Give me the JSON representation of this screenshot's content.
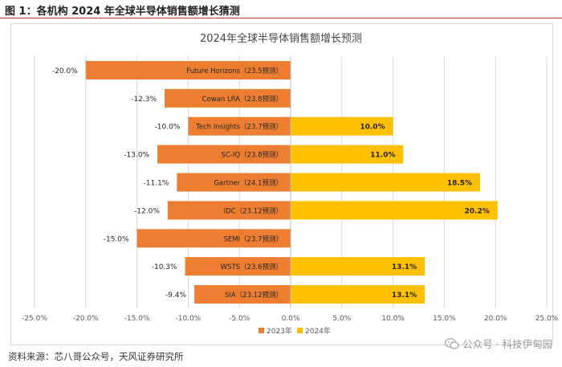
{
  "figure_title": "图 1：各机构 2024 年全球半导体销售额增长猜测",
  "source_note": "资料来源：芯八哥公众号，天风证券研究所",
  "watermark": "公众号 · 科技伊甸园",
  "chart_data": {
    "type": "bar",
    "orientation": "horizontal",
    "title": "2024年全球半导体销售额增长预测",
    "categories": [
      "Future Horizons（23.5预测）",
      "Cowan LRA（23.8预测）",
      "Tech Insights（23.7预测）",
      "SC-IQ（23.8预测）",
      "Gartner（24.1预测）",
      "IDC（23.12预测）",
      "SEMI（23.7预测）",
      "WSTS（23.6预测）",
      "SIA（23.12预测）"
    ],
    "series": [
      {
        "name": "2023年",
        "color": "#ed7d31",
        "values": [
          -20.0,
          -12.3,
          -10.0,
          -13.0,
          -11.1,
          -12.0,
          -15.0,
          -10.3,
          -9.4
        ],
        "labels": [
          "-20.0%",
          "-12.3%",
          "-10.0%",
          "-13.0%",
          "-11.1%",
          "-12.0%",
          "-15.0%",
          "-10.3%",
          "-9.4%"
        ]
      },
      {
        "name": "2024年",
        "color": "#ffc000",
        "values": [
          null,
          null,
          10.0,
          11.0,
          18.5,
          20.2,
          null,
          13.1,
          13.1
        ],
        "labels": [
          "",
          "",
          "10.0%",
          "11.0%",
          "18.5%",
          "20.2%",
          "",
          "13.1%",
          "13.1%"
        ]
      }
    ],
    "xlim": [
      -25,
      25
    ],
    "xticks": [
      -25,
      -20,
      -15,
      -10,
      -5,
      0,
      5,
      10,
      15,
      20,
      25
    ],
    "xtick_labels": [
      "-25.0%",
      "-20.0%",
      "-15.0%",
      "-10.0%",
      "-5.0%",
      "0.0%",
      "5.0%",
      "10.0%",
      "15.0%",
      "20.0%",
      "25.0%"
    ],
    "grid": true,
    "legend_position": "bottom"
  }
}
